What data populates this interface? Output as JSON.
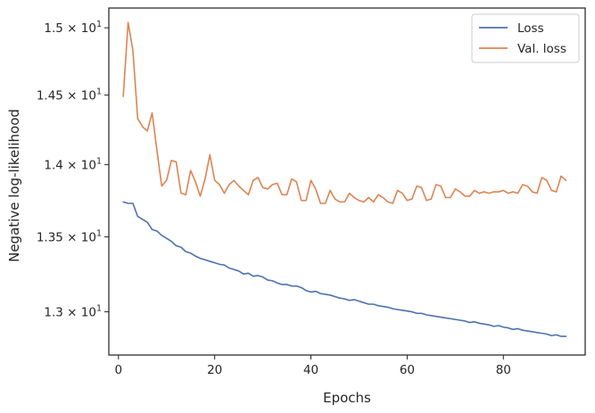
{
  "chart_data": {
    "type": "line",
    "title": "",
    "xlabel": "Epochs",
    "ylabel": "Negative log-likelihood",
    "xlim": [
      -2,
      97
    ],
    "ylim": [
      12.72,
      15.15
    ],
    "y_scale": "log",
    "grid": false,
    "legend_position": "top-right",
    "x_ticks": [
      0,
      20,
      40,
      60,
      80
    ],
    "x_tick_labels": [
      "0",
      "20",
      "40",
      "60",
      "80"
    ],
    "y_ticks": [
      13.0,
      13.5,
      14.0,
      14.5,
      15.0
    ],
    "y_tick_labels": [
      {
        "mantissa": "1.3",
        "exponent": "1"
      },
      {
        "mantissa": "1.35",
        "exponent": "1"
      },
      {
        "mantissa": "1.4",
        "exponent": "1"
      },
      {
        "mantissa": "1.45",
        "exponent": "1"
      },
      {
        "mantissa": "1.5",
        "exponent": "1"
      }
    ],
    "series": [
      {
        "name": "Loss",
        "color": "#4c72b0",
        "x": [
          1,
          2,
          3,
          4,
          5,
          6,
          7,
          8,
          9,
          10,
          11,
          12,
          13,
          14,
          15,
          16,
          17,
          18,
          19,
          20,
          21,
          22,
          23,
          24,
          25,
          26,
          27,
          28,
          29,
          30,
          31,
          32,
          33,
          34,
          35,
          36,
          37,
          38,
          39,
          40,
          41,
          42,
          43,
          44,
          45,
          46,
          47,
          48,
          49,
          50,
          51,
          52,
          53,
          54,
          55,
          56,
          57,
          58,
          59,
          60,
          61,
          62,
          63,
          64,
          65,
          66,
          67,
          68,
          69,
          70,
          71,
          72,
          73,
          74,
          75,
          76,
          77,
          78,
          79,
          80,
          81,
          82,
          83,
          84,
          85,
          86,
          87,
          88,
          89,
          90,
          91,
          92,
          93
        ],
        "values": [
          13.74,
          13.73,
          13.73,
          13.64,
          13.62,
          13.6,
          13.55,
          13.54,
          13.51,
          13.49,
          13.47,
          13.44,
          13.43,
          13.4,
          13.39,
          13.37,
          13.355,
          13.345,
          13.335,
          13.325,
          13.315,
          13.31,
          13.29,
          13.28,
          13.27,
          13.25,
          13.255,
          13.235,
          13.24,
          13.23,
          13.21,
          13.205,
          13.19,
          13.18,
          13.18,
          13.17,
          13.17,
          13.16,
          13.14,
          13.13,
          13.135,
          13.12,
          13.115,
          13.11,
          13.1,
          13.09,
          13.085,
          13.075,
          13.08,
          13.07,
          13.06,
          13.05,
          13.05,
          13.04,
          13.035,
          13.03,
          13.02,
          13.015,
          13.01,
          13.005,
          13.0,
          12.99,
          12.99,
          12.98,
          12.975,
          12.97,
          12.965,
          12.96,
          12.955,
          12.95,
          12.945,
          12.94,
          12.93,
          12.935,
          12.925,
          12.92,
          12.915,
          12.905,
          12.91,
          12.9,
          12.895,
          12.885,
          12.89,
          12.88,
          12.875,
          12.87,
          12.865,
          12.86,
          12.855,
          12.845,
          12.85,
          12.84,
          12.84
        ]
      },
      {
        "name": "Val. loss",
        "color": "#dd8452",
        "x": [
          1,
          2,
          3,
          4,
          5,
          6,
          7,
          8,
          9,
          10,
          11,
          12,
          13,
          14,
          15,
          16,
          17,
          18,
          19,
          20,
          21,
          22,
          23,
          24,
          25,
          26,
          27,
          28,
          29,
          30,
          31,
          32,
          33,
          34,
          35,
          36,
          37,
          38,
          39,
          40,
          41,
          42,
          43,
          44,
          45,
          46,
          47,
          48,
          49,
          50,
          51,
          52,
          53,
          54,
          55,
          56,
          57,
          58,
          59,
          60,
          61,
          62,
          63,
          64,
          65,
          66,
          67,
          68,
          69,
          70,
          71,
          72,
          73,
          74,
          75,
          76,
          77,
          78,
          79,
          80,
          81,
          82,
          83,
          84,
          85,
          86,
          87,
          88,
          89,
          90,
          91,
          92,
          93
        ],
        "values": [
          14.49,
          15.04,
          14.83,
          14.33,
          14.27,
          14.24,
          14.37,
          14.1,
          13.85,
          13.89,
          14.03,
          14.02,
          13.8,
          13.79,
          13.96,
          13.88,
          13.78,
          13.9,
          14.07,
          13.89,
          13.86,
          13.8,
          13.86,
          13.89,
          13.85,
          13.82,
          13.79,
          13.89,
          13.91,
          13.84,
          13.83,
          13.86,
          13.87,
          13.79,
          13.79,
          13.9,
          13.88,
          13.75,
          13.75,
          13.89,
          13.83,
          13.73,
          13.73,
          13.82,
          13.76,
          13.74,
          13.74,
          13.8,
          13.77,
          13.75,
          13.74,
          13.77,
          13.74,
          13.79,
          13.77,
          13.74,
          13.73,
          13.82,
          13.8,
          13.75,
          13.76,
          13.85,
          13.84,
          13.75,
          13.76,
          13.86,
          13.85,
          13.77,
          13.77,
          13.83,
          13.81,
          13.78,
          13.78,
          13.82,
          13.8,
          13.81,
          13.8,
          13.81,
          13.81,
          13.82,
          13.8,
          13.81,
          13.8,
          13.86,
          13.85,
          13.81,
          13.8,
          13.91,
          13.89,
          13.82,
          13.81,
          13.92,
          13.89
        ]
      }
    ]
  }
}
